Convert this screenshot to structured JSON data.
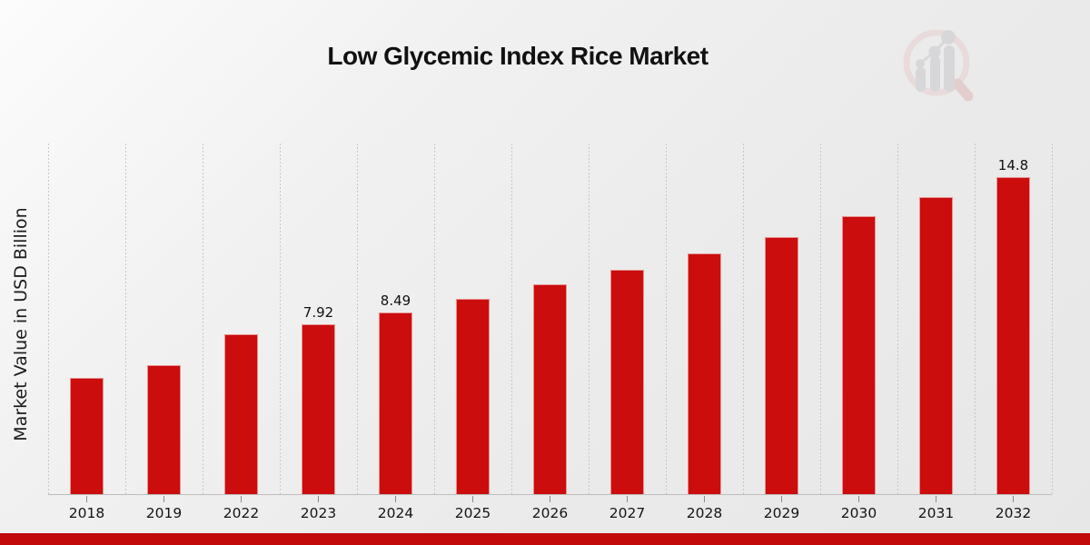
{
  "page": {
    "title": "Low Glycemic Index Rice Market",
    "logo": "market-research-future-watermark"
  },
  "chart_data": {
    "type": "bar",
    "title": "Low Glycemic Index Rice Market",
    "xlabel": "",
    "ylabel": "Market Value in USD Billion",
    "categories": [
      "2018",
      "2019",
      "2022",
      "2023",
      "2024",
      "2025",
      "2026",
      "2027",
      "2028",
      "2029",
      "2030",
      "2031",
      "2032"
    ],
    "values": [
      5.42,
      6.01,
      7.44,
      7.92,
      8.49,
      9.13,
      9.79,
      10.45,
      11.22,
      12.0,
      12.95,
      13.85,
      14.8
    ],
    "data_labels": [
      "",
      "",
      "",
      "7.92",
      "8.49",
      "",
      "",
      "",
      "",
      "",
      "",
      "",
      "14.8"
    ],
    "ylim": [
      0,
      16.4
    ],
    "y_ticks_visible": false,
    "grid": "vertical-dotted",
    "legend_position": "none",
    "colors": {
      "bar": "#cb0d0d",
      "banner": "#c20a0a",
      "gridline": "#c7c7c7",
      "axis_line": "#bdbdbd",
      "tick": "#8b8b8b",
      "text": "#1a1a1a"
    }
  }
}
